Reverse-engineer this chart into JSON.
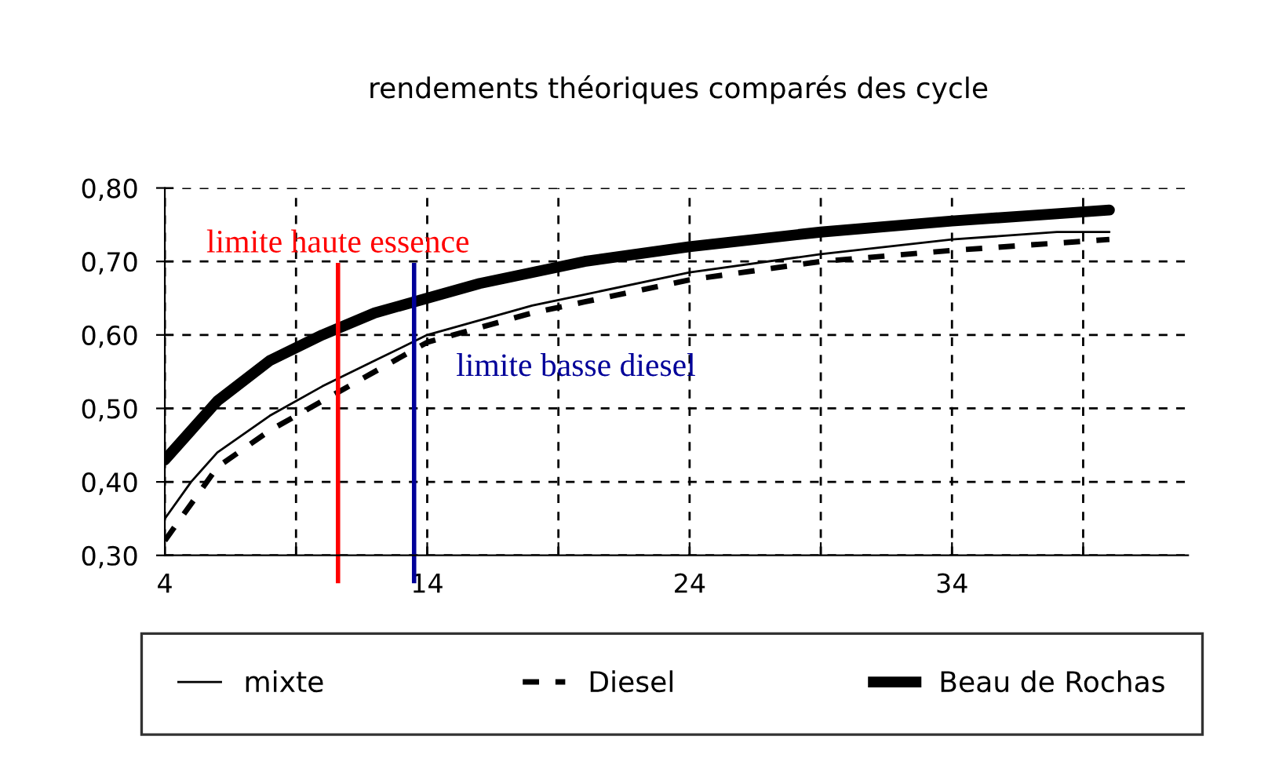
{
  "chart_data": {
    "type": "line",
    "title": "rendements théoriques comparés des cycle",
    "x": [
      4,
      5,
      6,
      8,
      10,
      12,
      14,
      16,
      18,
      20,
      24,
      29,
      34,
      38,
      40
    ],
    "series": [
      {
        "name": "mixte",
        "color": "#000000",
        "line_style": "solid",
        "values": [
          0.35,
          0.4,
          0.44,
          0.49,
          0.53,
          0.565,
          0.6,
          0.62,
          0.64,
          0.655,
          0.685,
          0.71,
          0.73,
          0.74,
          0.74
        ]
      },
      {
        "name": "Diesel",
        "color": "#000000",
        "line_style": "dashed",
        "values": [
          0.32,
          0.37,
          0.42,
          0.47,
          0.51,
          0.55,
          0.59,
          0.61,
          0.63,
          0.645,
          0.675,
          0.7,
          0.715,
          0.725,
          0.73
        ]
      },
      {
        "name": "Beau de Rochas",
        "color": "#000000",
        "line_style": "solid",
        "values": [
          0.43,
          0.47,
          0.51,
          0.565,
          0.6,
          0.63,
          0.65,
          0.67,
          0.685,
          0.7,
          0.72,
          0.74,
          0.755,
          0.765,
          0.77
        ]
      }
    ],
    "xlim": [
      4,
      43
    ],
    "xticks": [
      4,
      {
        "value": 9,
        "label": null
      },
      14,
      {
        "value": 19,
        "label": null
      },
      24,
      {
        "value": 29,
        "label": null
      },
      34,
      {
        "value": 39,
        "label": null
      }
    ],
    "ylim": [
      0.3,
      0.8
    ],
    "yticks": [
      {
        "value": 0.3,
        "label": "0,30"
      },
      {
        "value": 0.4,
        "label": "0,40"
      },
      {
        "value": 0.5,
        "label": "0,50"
      },
      {
        "value": 0.6,
        "label": "0,60"
      },
      {
        "value": 0.7,
        "label": "0,70"
      },
      {
        "value": 0.8,
        "label": "0,80"
      }
    ],
    "grid": true,
    "legend": "bottom",
    "marker": "none",
    "ref_lines": [
      {
        "axis": "x",
        "value": 10.6,
        "label": "limite haute essence",
        "color": "#ff0000"
      },
      {
        "axis": "x",
        "value": 13.5,
        "label": "limite basse diesel",
        "color": "#000099"
      }
    ]
  }
}
